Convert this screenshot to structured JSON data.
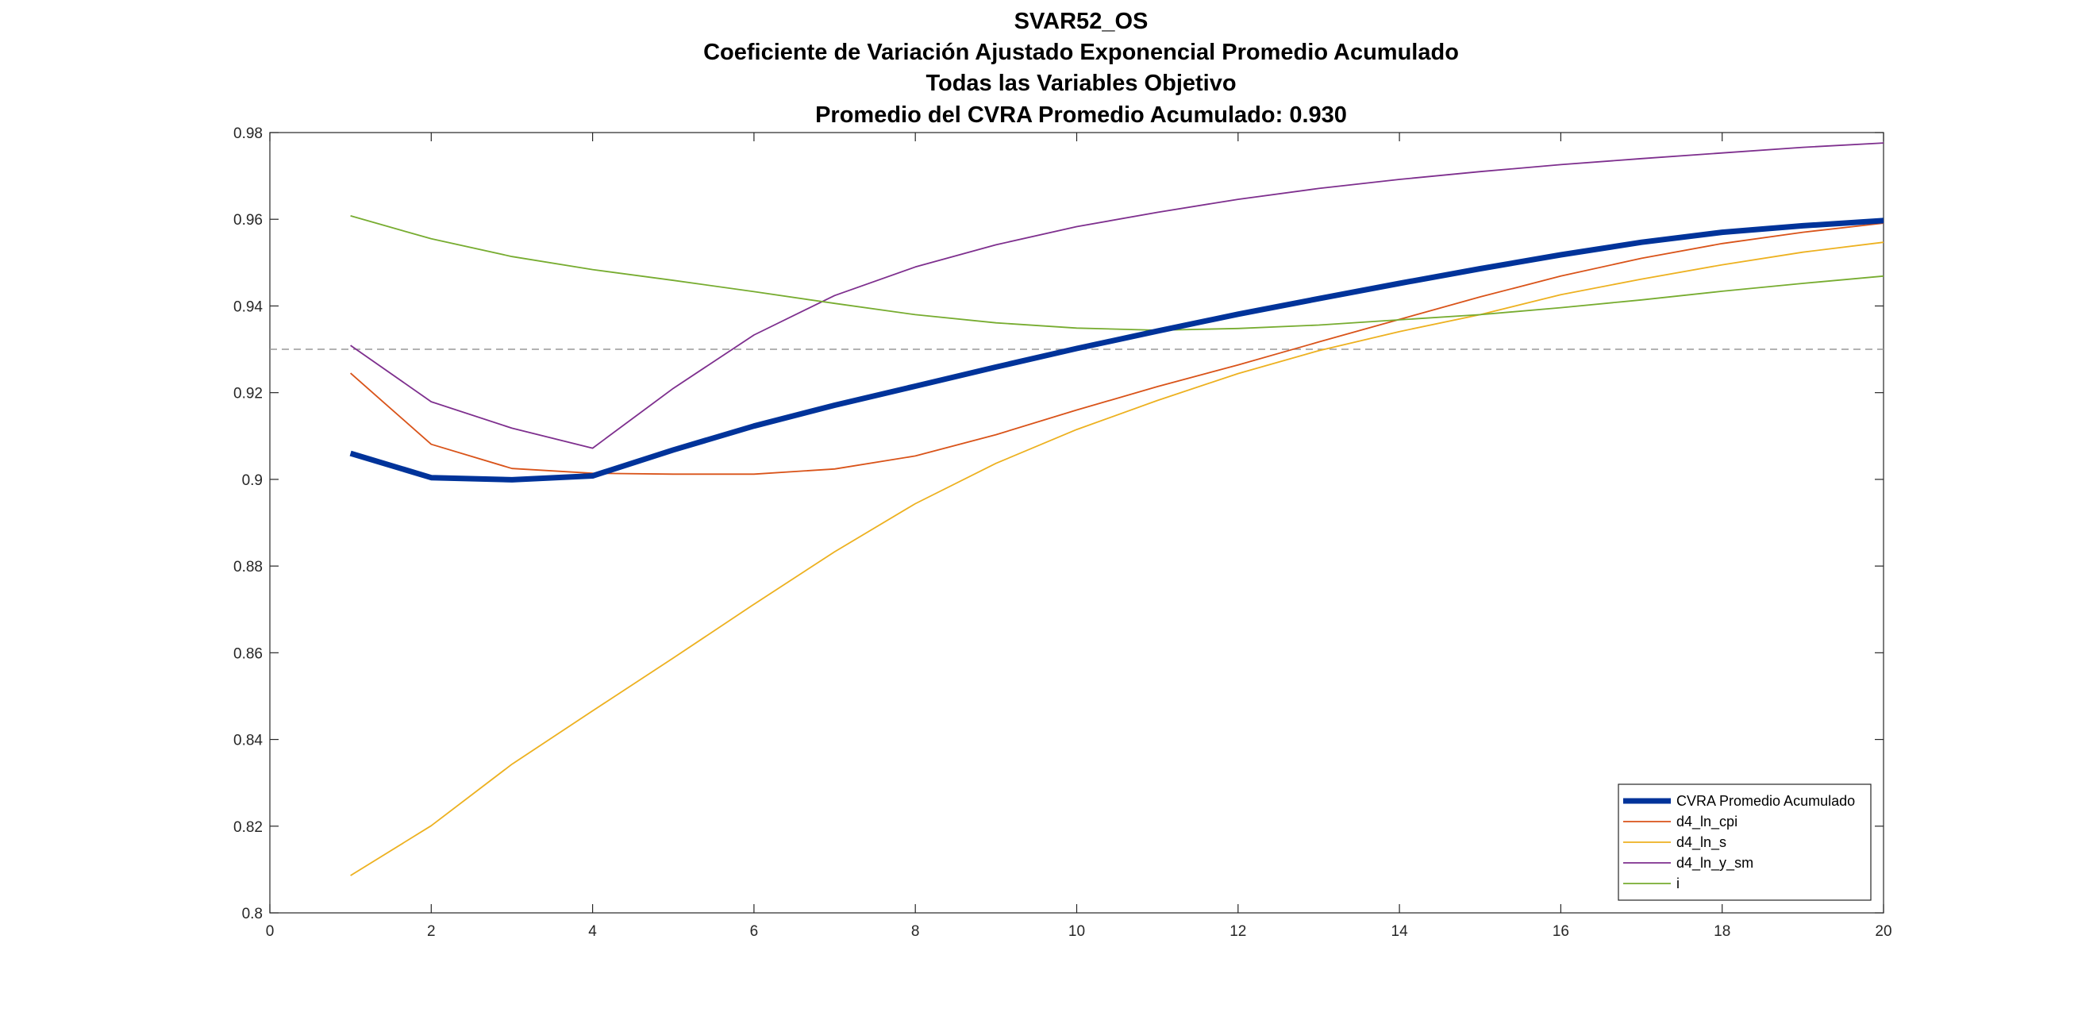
{
  "chart_data": {
    "type": "line",
    "title_lines": [
      "SVAR52_OS",
      "Coeficiente de Variación Ajustado Exponencial Promedio Acumulado",
      "Todas las Variables Objetivo",
      "Promedio del CVRA Promedio Acumulado:  0.930"
    ],
    "xlabel": "",
    "ylabel": "",
    "xlim": [
      0,
      20
    ],
    "ylim": [
      0.8,
      0.98
    ],
    "xticks": [
      0,
      2,
      4,
      6,
      8,
      10,
      12,
      14,
      16,
      18,
      20
    ],
    "xtick_labels": [
      "0",
      "2",
      "4",
      "6",
      "8",
      "10",
      "12",
      "14",
      "16",
      "18",
      "20"
    ],
    "yticks": [
      0.8,
      0.82,
      0.84,
      0.86,
      0.88,
      0.9,
      0.92,
      0.94,
      0.96,
      0.98
    ],
    "ytick_labels": [
      "0.8",
      "0.82",
      "0.84",
      "0.86",
      "0.88",
      "0.9",
      "0.92",
      "0.94",
      "0.96",
      "0.98"
    ],
    "grid": false,
    "legend_position": "bottom-right",
    "reference_line": {
      "y": 0.93,
      "style": "dashed",
      "color": "#999999"
    },
    "x": [
      1,
      2,
      3,
      4,
      5,
      6,
      7,
      8,
      9,
      10,
      11,
      12,
      13,
      14,
      15,
      16,
      17,
      18,
      19,
      20
    ],
    "series": [
      {
        "name": "CVRA Promedio Acumulado",
        "color": "#00339a",
        "bold": true,
        "values": [
          0.906,
          0.9004,
          0.8999,
          0.9008,
          0.9068,
          0.9123,
          0.9171,
          0.9215,
          0.9259,
          0.9302,
          0.9342,
          0.9381,
          0.9417,
          0.9452,
          0.9486,
          0.9518,
          0.9547,
          0.957,
          0.9585,
          0.9597
        ]
      },
      {
        "name": "d4_ln_cpi",
        "color": "#d95319",
        "bold": false,
        "values": [
          0.9245,
          0.9081,
          0.9025,
          0.9014,
          0.9012,
          0.9012,
          0.9024,
          0.9054,
          0.9103,
          0.916,
          0.9214,
          0.9264,
          0.9317,
          0.9369,
          0.9421,
          0.9469,
          0.951,
          0.9544,
          0.957,
          0.9591
        ]
      },
      {
        "name": "d4_ln_s",
        "color": "#edb120",
        "bold": false,
        "values": [
          0.8086,
          0.8201,
          0.8343,
          0.8466,
          0.8588,
          0.8712,
          0.8833,
          0.8944,
          0.9037,
          0.9115,
          0.9182,
          0.9244,
          0.9297,
          0.9341,
          0.938,
          0.9426,
          0.9462,
          0.9495,
          0.9524,
          0.9547
        ]
      },
      {
        "name": "d4_ln_y_sm",
        "color": "#7e2f8e",
        "bold": false,
        "values": [
          0.9309,
          0.9179,
          0.9118,
          0.9072,
          0.921,
          0.9333,
          0.9424,
          0.949,
          0.9541,
          0.9583,
          0.9616,
          0.9646,
          0.9671,
          0.9692,
          0.971,
          0.9726,
          0.974,
          0.9753,
          0.9766,
          0.9776
        ]
      },
      {
        "name": "i",
        "color": "#77ac30",
        "bold": false,
        "values": [
          0.9608,
          0.9555,
          0.9514,
          0.9484,
          0.9459,
          0.9433,
          0.9406,
          0.938,
          0.9361,
          0.9349,
          0.9344,
          0.9348,
          0.9356,
          0.9368,
          0.938,
          0.9396,
          0.9414,
          0.9434,
          0.9452,
          0.9469
        ]
      }
    ]
  }
}
